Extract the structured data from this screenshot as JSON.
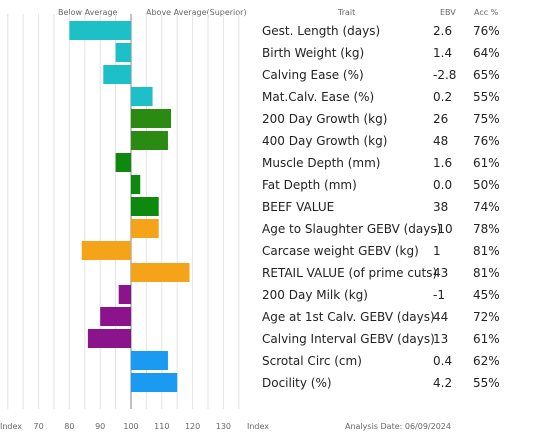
{
  "header": {
    "below_average": "Below Average",
    "above_average": "Above Average(Superior)",
    "trait": "Trait",
    "ebv": "EBV",
    "acc": "Acc %"
  },
  "footer": {
    "index_left": "Index",
    "index_right": "Index",
    "analysis_date": "Analysis Date:  06/09/2024"
  },
  "colors": {
    "calving": "#1ec0c8",
    "growth": "#2a8a12",
    "carcase": "#0d8a0d",
    "value": "#f5a318",
    "maternal": "#8b138b",
    "other": "#1a9af0"
  },
  "chart_data": {
    "type": "bar",
    "orientation": "horizontal",
    "x_label": "Index",
    "xlim": [
      60,
      135
    ],
    "baseline": 100,
    "ticks": [
      70,
      80,
      90,
      100,
      110,
      120,
      130
    ],
    "grid": true,
    "rows": [
      {
        "trait": "Gest. Length (days)",
        "ebv": "2.6",
        "acc": "76%",
        "index": 80,
        "color": "calving"
      },
      {
        "trait": "Birth Weight (kg)",
        "ebv": "1.4",
        "acc": "64%",
        "index": 95,
        "color": "calving"
      },
      {
        "trait": "Calving Ease (%)",
        "ebv": "-2.8",
        "acc": "65%",
        "index": 91,
        "color": "calving"
      },
      {
        "trait": "Mat.Calv. Ease (%)",
        "ebv": "0.2",
        "acc": "55%",
        "index": 107,
        "color": "calving"
      },
      {
        "trait": "200 Day Growth (kg)",
        "ebv": "26",
        "acc": "75%",
        "index": 113,
        "color": "growth"
      },
      {
        "trait": "400 Day Growth (kg)",
        "ebv": "48",
        "acc": "76%",
        "index": 112,
        "color": "growth"
      },
      {
        "trait": "Muscle Depth (mm)",
        "ebv": "1.6",
        "acc": "61%",
        "index": 95,
        "color": "carcase"
      },
      {
        "trait": "Fat Depth (mm)",
        "ebv": "0.0",
        "acc": "50%",
        "index": 103,
        "color": "carcase"
      },
      {
        "trait": "BEEF VALUE",
        "ebv": "38",
        "acc": "74%",
        "index": 109,
        "color": "carcase"
      },
      {
        "trait": "Age to Slaughter GEBV (days)",
        "ebv": "-10",
        "acc": "78%",
        "index": 109,
        "color": "value"
      },
      {
        "trait": "Carcase weight GEBV (kg)",
        "ebv": "1",
        "acc": "81%",
        "index": 84,
        "color": "value"
      },
      {
        "trait": "RETAIL VALUE (of prime cuts)",
        "ebv": "43",
        "acc": "81%",
        "index": 119,
        "color": "value"
      },
      {
        "trait": "200 Day Milk (kg)",
        "ebv": "-1",
        "acc": "45%",
        "index": 96,
        "color": "maternal"
      },
      {
        "trait": "Age at 1st Calv. GEBV (days)",
        "ebv": "44",
        "acc": "72%",
        "index": 90,
        "color": "maternal"
      },
      {
        "trait": "Calving Interval GEBV (days)",
        "ebv": "13",
        "acc": "61%",
        "index": 86,
        "color": "maternal"
      },
      {
        "trait": "Scrotal Circ (cm)",
        "ebv": "0.4",
        "acc": "62%",
        "index": 112,
        "color": "other"
      },
      {
        "trait": "Docility (%)",
        "ebv": "4.2",
        "acc": "55%",
        "index": 115,
        "color": "other"
      }
    ]
  }
}
